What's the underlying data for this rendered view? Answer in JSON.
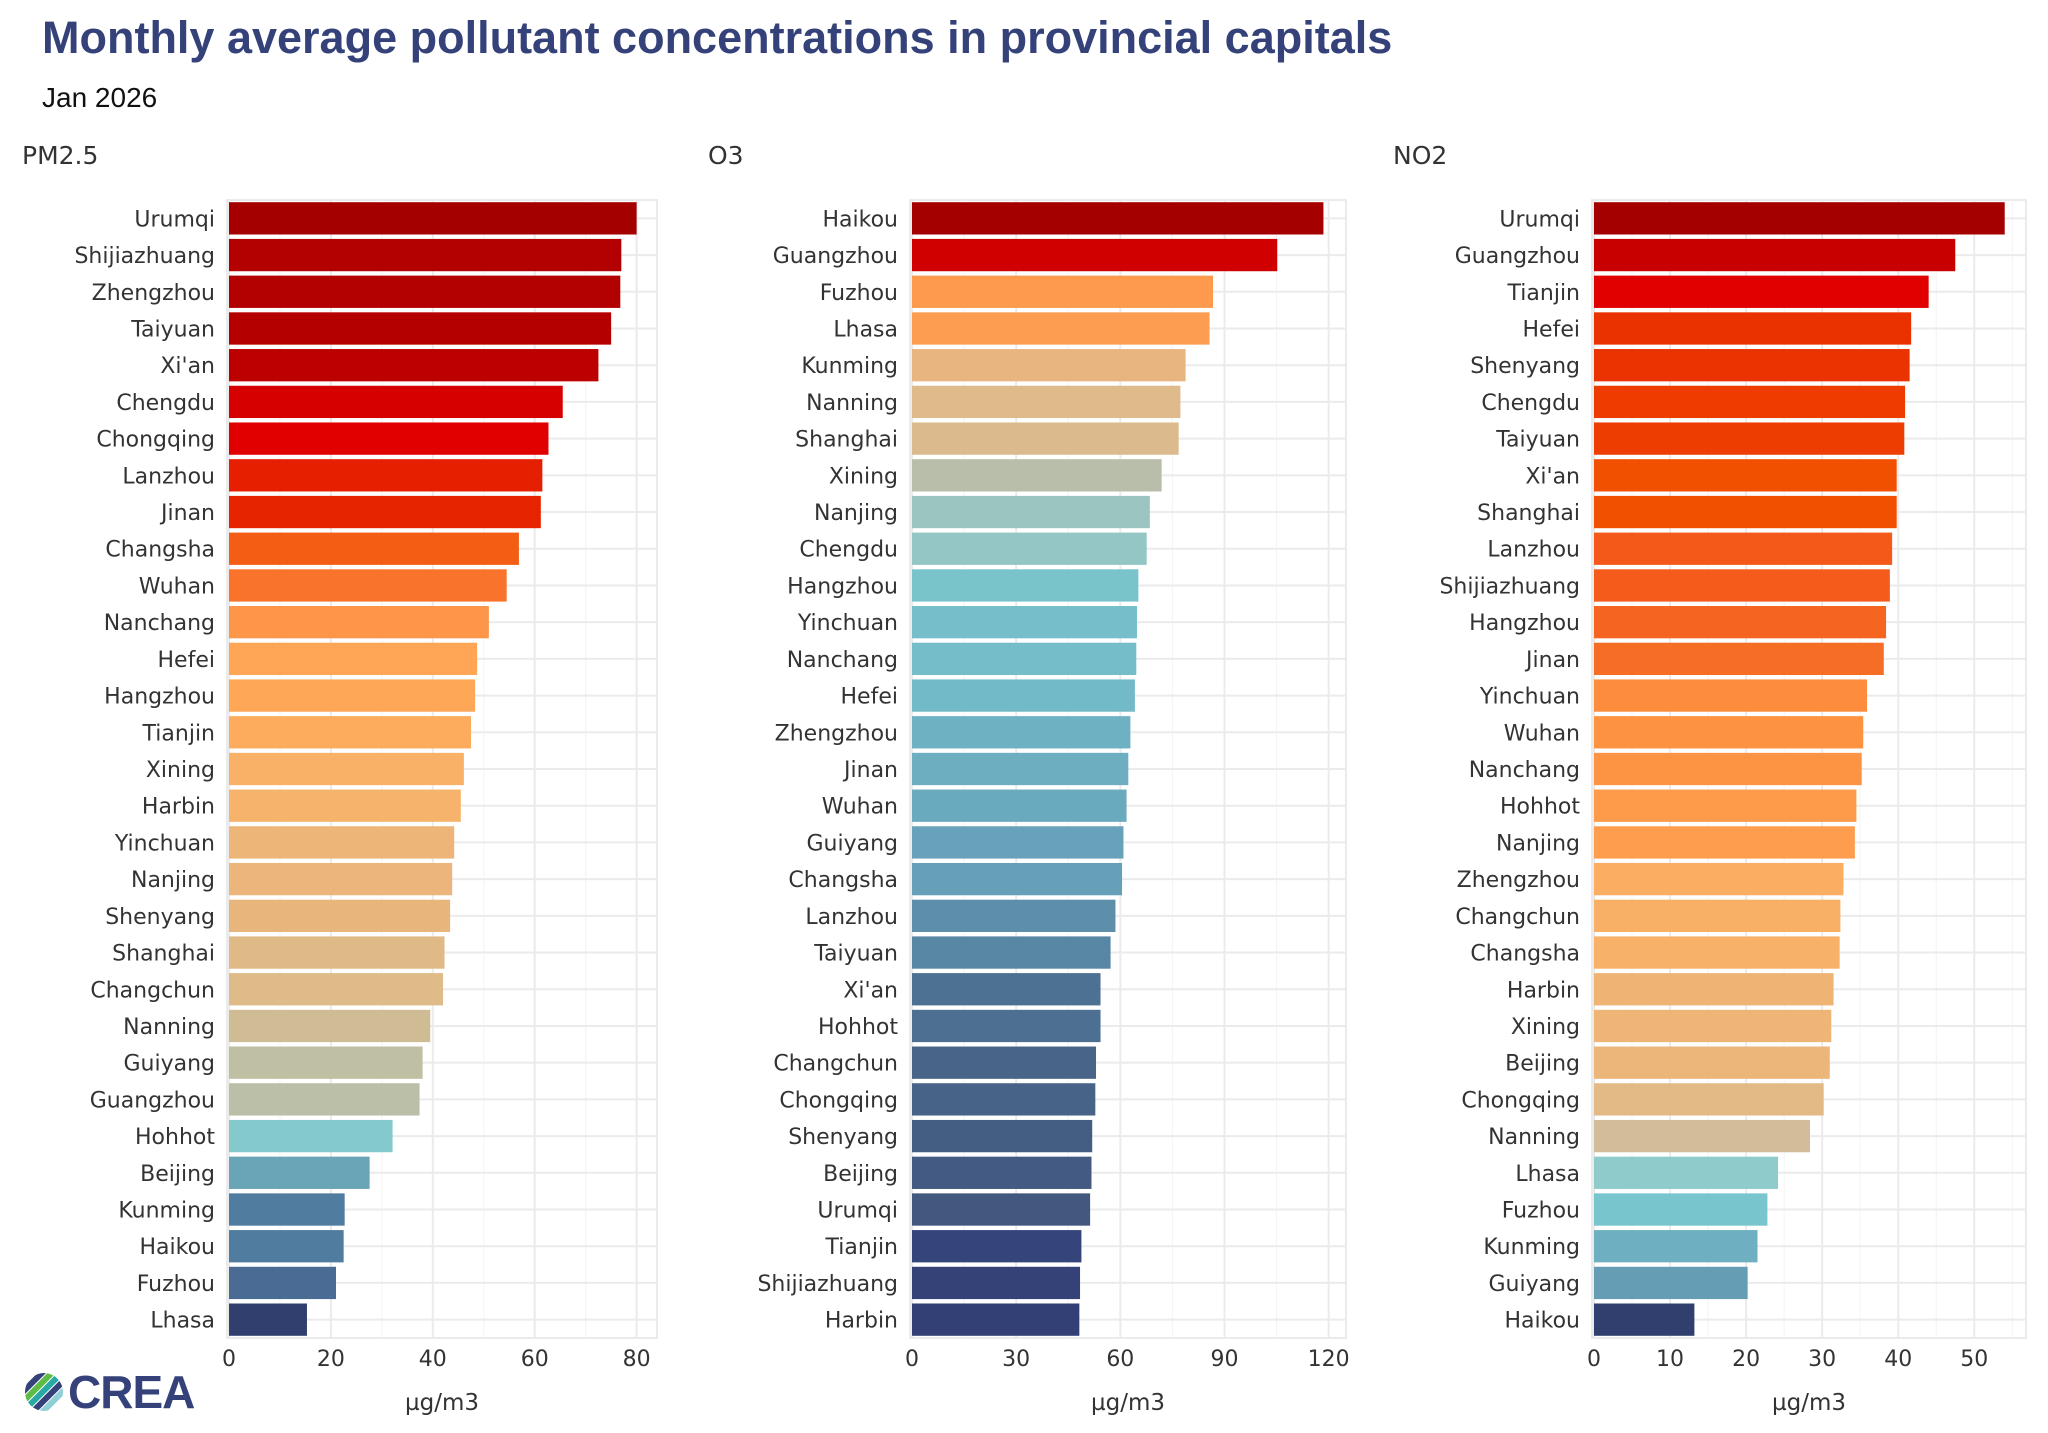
{
  "header": {
    "title": "Monthly average pollutant concentrations in provincial capitals",
    "subtitle": "Jan 2026"
  },
  "logo": {
    "icon": "crea-logo-icon",
    "text": "CREA"
  },
  "colors": {
    "title": "#35427a",
    "grid": "#ebebeb",
    "high": "#a50000",
    "mid": "#fdae61",
    "low": "#313f6f"
  },
  "chart_data": [
    {
      "type": "bar",
      "orientation": "horizontal",
      "title": "PM2.5",
      "xlabel": "µg/m3",
      "ylabel": "",
      "xlim": [
        0,
        84
      ],
      "xticks": [
        0,
        20,
        40,
        60,
        80
      ],
      "grid": true,
      "categories": [
        "Urumqi",
        "Shijiazhuang",
        "Zhengzhou",
        "Taiyuan",
        "Xi'an",
        "Chengdu",
        "Chongqing",
        "Lanzhou",
        "Jinan",
        "Changsha",
        "Wuhan",
        "Nanchang",
        "Hefei",
        "Hangzhou",
        "Tianjin",
        "Xining",
        "Harbin",
        "Yinchuan",
        "Nanjing",
        "Shenyang",
        "Shanghai",
        "Changchun",
        "Nanning",
        "Guiyang",
        "Guangzhou",
        "Hohhot",
        "Beijing",
        "Kunming",
        "Haikou",
        "Fuzhou",
        "Lhasa"
      ],
      "values": [
        80.0,
        77.0,
        76.8,
        75.0,
        72.5,
        65.5,
        62.7,
        61.5,
        61.2,
        56.9,
        54.5,
        51.0,
        48.7,
        48.3,
        47.5,
        46.1,
        45.5,
        44.2,
        43.8,
        43.4,
        42.3,
        42.0,
        39.5,
        38.0,
        37.4,
        32.1,
        27.6,
        22.7,
        22.5,
        21.0,
        15.3
      ],
      "bar_colors": [
        "#a50000",
        "#b30000",
        "#b30000",
        "#b50000",
        "#bc0000",
        "#d70000",
        "#e00000",
        "#e61f00",
        "#e62400",
        "#f45d14",
        "#f9732b",
        "#fd9649",
        "#fea655",
        "#fea757",
        "#fdab5c",
        "#f9b167",
        "#f6b36c",
        "#edb577",
        "#ebb57b",
        "#e8b67d",
        "#e0ba86",
        "#debb89",
        "#cfbc95",
        "#bfbfa3",
        "#bcbfa8",
        "#84c9cc",
        "#6aa4b7",
        "#507ca0",
        "#507ca0",
        "#4a6b93",
        "#313f6f"
      ]
    },
    {
      "type": "bar",
      "orientation": "horizontal",
      "title": "O3",
      "xlabel": "µg/m3",
      "ylabel": "",
      "xlim": [
        0,
        125
      ],
      "xticks": [
        0,
        30,
        60,
        90,
        120
      ],
      "grid": true,
      "categories": [
        "Haikou",
        "Guangzhou",
        "Fuzhou",
        "Lhasa",
        "Kunming",
        "Nanning",
        "Shanghai",
        "Xining",
        "Nanjing",
        "Chengdu",
        "Hangzhou",
        "Yinchuan",
        "Nanchang",
        "Hefei",
        "Zhengzhou",
        "Jinan",
        "Wuhan",
        "Guiyang",
        "Changsha",
        "Lanzhou",
        "Taiyuan",
        "Xi'an",
        "Hohhot",
        "Changchun",
        "Chongqing",
        "Shenyang",
        "Beijing",
        "Urumqi",
        "Tianjin",
        "Shijiazhuang",
        "Harbin"
      ],
      "values": [
        118.5,
        105.2,
        86.7,
        85.7,
        78.8,
        77.3,
        76.8,
        71.9,
        68.5,
        67.6,
        65.2,
        64.8,
        64.6,
        64.2,
        62.9,
        62.3,
        61.8,
        60.9,
        60.5,
        58.6,
        57.2,
        54.3,
        54.3,
        53.0,
        52.8,
        51.9,
        51.7,
        51.3,
        48.8,
        48.4,
        48.2
      ],
      "bar_colors": [
        "#a50000",
        "#d10000",
        "#fd9a4d",
        "#fd9d51",
        "#e8b580",
        "#dfba8a",
        "#dbba8d",
        "#b9beab",
        "#9bc5c0",
        "#94c6c5",
        "#79c3cb",
        "#76bfca",
        "#75bdc9",
        "#73bac8",
        "#6eb1c3",
        "#6daec1",
        "#6aaabe",
        "#67a2ba",
        "#659fb8",
        "#5d8faa",
        "#5887a5",
        "#4d7193",
        "#4c6f92",
        "#486489",
        "#476387",
        "#445d83",
        "#435b82",
        "#42587f",
        "#35447a",
        "#344277",
        "#334075"
      ]
    },
    {
      "type": "bar",
      "orientation": "horizontal",
      "title": "NO2",
      "xlabel": "µg/m3",
      "ylabel": "",
      "xlim": [
        0,
        56.8
      ],
      "xticks": [
        0,
        10,
        20,
        30,
        40,
        50
      ],
      "grid": true,
      "categories": [
        "Urumqi",
        "Guangzhou",
        "Tianjin",
        "Hefei",
        "Shenyang",
        "Chengdu",
        "Taiyuan",
        "Xi'an",
        "Shanghai",
        "Lanzhou",
        "Shijiazhuang",
        "Hangzhou",
        "Jinan",
        "Yinchuan",
        "Wuhan",
        "Nanchang",
        "Hohhot",
        "Nanjing",
        "Zhengzhou",
        "Changchun",
        "Changsha",
        "Harbin",
        "Xining",
        "Beijing",
        "Chongqing",
        "Nanning",
        "Lhasa",
        "Fuzhou",
        "Kunming",
        "Guiyang",
        "Haikou"
      ],
      "values": [
        54.0,
        47.5,
        44.0,
        41.7,
        41.5,
        40.9,
        40.8,
        39.8,
        39.8,
        39.2,
        38.9,
        38.4,
        38.1,
        35.9,
        35.4,
        35.2,
        34.5,
        34.3,
        32.8,
        32.4,
        32.3,
        31.5,
        31.2,
        31.0,
        30.2,
        28.4,
        24.2,
        22.8,
        21.5,
        20.2,
        13.2
      ],
      "bar_colors": [
        "#a50000",
        "#c90000",
        "#e00000",
        "#ea3200",
        "#ea3300",
        "#ee3c00",
        "#ee3d00",
        "#f05000",
        "#f05000",
        "#f4591a",
        "#f55c1c",
        "#f5651f",
        "#f66d26",
        "#fd8d3c",
        "#fd9240",
        "#fd9444",
        "#fd9b4a",
        "#fd9d4d",
        "#fbae62",
        "#f8b066",
        "#f7b168",
        "#efb474",
        "#eeb577",
        "#ecb57a",
        "#e3b985",
        "#d2bc9a",
        "#8fcbcb",
        "#78c5cd",
        "#6eb0c2",
        "#659db5",
        "#313f6f"
      ]
    }
  ]
}
